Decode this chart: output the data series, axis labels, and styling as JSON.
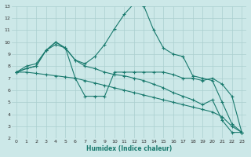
{
  "xlabel": "Humidex (Indice chaleur)",
  "background_color": "#cce8e8",
  "grid_color": "#aacfcf",
  "line_color": "#1a7a6e",
  "xlim": [
    -0.5,
    23.5
  ],
  "ylim": [
    2,
    13
  ],
  "yticks": [
    2,
    3,
    4,
    5,
    6,
    7,
    8,
    9,
    10,
    11,
    12,
    13
  ],
  "xticks": [
    0,
    1,
    2,
    3,
    4,
    5,
    6,
    7,
    8,
    9,
    10,
    11,
    12,
    13,
    14,
    15,
    16,
    17,
    18,
    19,
    20,
    21,
    22,
    23
  ],
  "series": [
    {
      "x": [
        0,
        1,
        2,
        3,
        4,
        5,
        6,
        7,
        8,
        9,
        10,
        11,
        12,
        13,
        14,
        15,
        16,
        17,
        18,
        19,
        20,
        21,
        22,
        23
      ],
      "y": [
        7.5,
        8.0,
        8.2,
        9.3,
        10.0,
        9.5,
        8.5,
        8.2,
        8.8,
        9.8,
        11.1,
        12.3,
        13.2,
        13.0,
        11.0,
        9.5,
        9.0,
        8.8,
        7.2,
        7.0,
        6.8,
        5.0,
        3.2,
        2.5
      ]
    },
    {
      "x": [
        0,
        1,
        2,
        3,
        4,
        5,
        6,
        7,
        8,
        9,
        10,
        11,
        12,
        13,
        14,
        15,
        16,
        17,
        18,
        19,
        20,
        21,
        22,
        23
      ],
      "y": [
        7.5,
        7.8,
        8.0,
        9.3,
        10.0,
        9.5,
        7.0,
        5.5,
        5.5,
        5.5,
        7.5,
        7.5,
        7.5,
        7.5,
        7.5,
        7.5,
        7.3,
        7.0,
        7.0,
        6.8,
        7.0,
        6.5,
        5.5,
        2.5
      ]
    },
    {
      "x": [
        0,
        1,
        2,
        3,
        4,
        5,
        6,
        7,
        8,
        9,
        10,
        11,
        12,
        13,
        14,
        15,
        16,
        17,
        18,
        19,
        20,
        21,
        22,
        23
      ],
      "y": [
        7.5,
        7.5,
        7.4,
        7.3,
        7.2,
        7.1,
        7.0,
        6.8,
        6.6,
        6.4,
        6.2,
        6.0,
        5.8,
        5.6,
        5.4,
        5.2,
        5.0,
        4.8,
        4.6,
        4.4,
        4.2,
        3.8,
        3.0,
        2.5
      ]
    },
    {
      "x": [
        0,
        1,
        2,
        3,
        4,
        5,
        6,
        7,
        8,
        9,
        10,
        11,
        12,
        13,
        14,
        15,
        16,
        17,
        18,
        19,
        20,
        21,
        22,
        23
      ],
      "y": [
        7.5,
        7.8,
        8.0,
        9.3,
        9.8,
        9.5,
        8.5,
        8.0,
        7.8,
        7.5,
        7.3,
        7.2,
        7.0,
        6.8,
        6.5,
        6.2,
        5.8,
        5.5,
        5.2,
        4.8,
        5.2,
        3.5,
        2.5,
        2.5
      ]
    }
  ]
}
